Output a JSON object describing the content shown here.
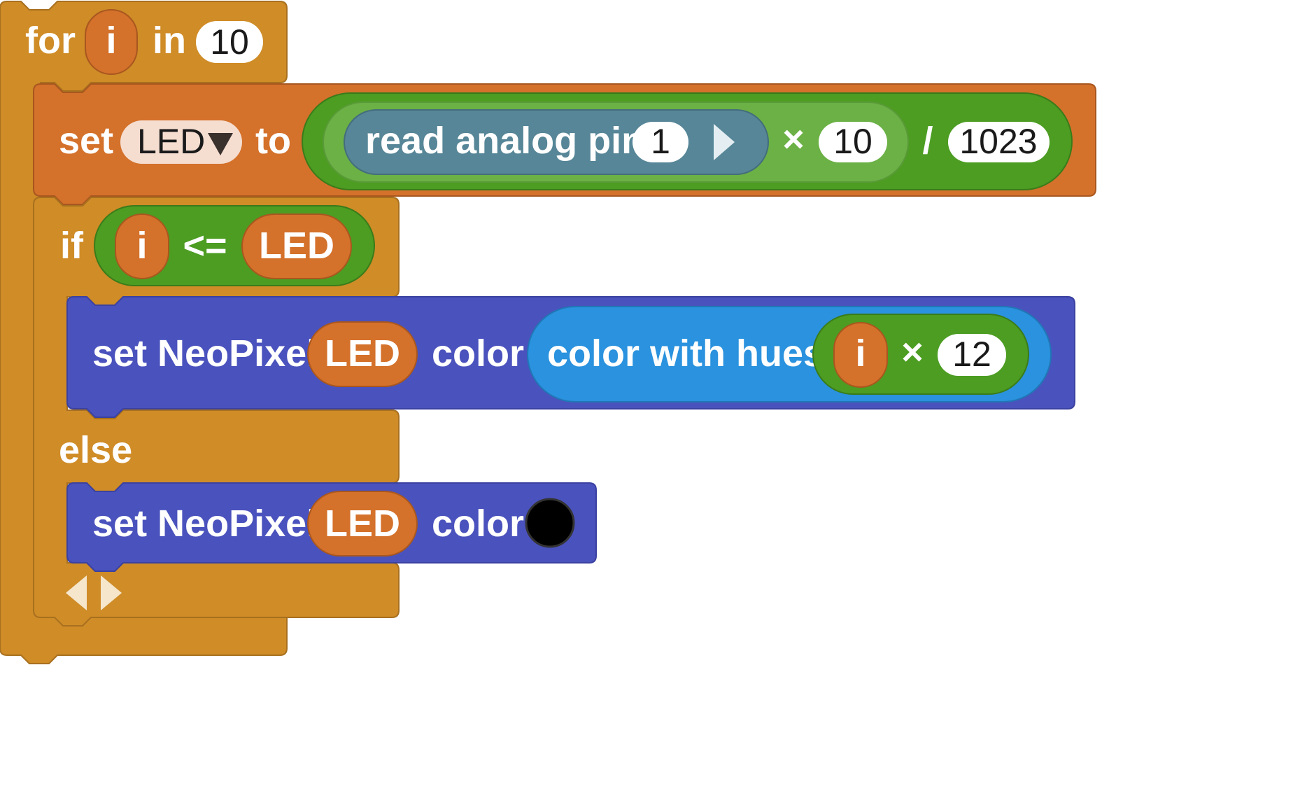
{
  "colors": {
    "loop": "#cf8c27",
    "variable": "#d4712b",
    "math": "#4c9d22",
    "math_inner": "#6bb146",
    "pins": "#568697",
    "light": "#4a52bd",
    "color": "#2a92de",
    "black_swatch": "#000000"
  },
  "for_block": {
    "label_for": "for",
    "var": "i",
    "label_in": "in",
    "count": "10"
  },
  "set_block": {
    "label_set": "set",
    "var": "LED",
    "label_to": "to",
    "read_label": "read analog pin",
    "pin": "1",
    "times": "×",
    "multiplier": "10",
    "divide": "/",
    "divisor": "1023"
  },
  "if_block": {
    "label_if": "if",
    "left": "i",
    "op": "<=",
    "right": "LED",
    "label_else": "else",
    "mutator_icons": [
      "arrow-left-icon",
      "arrow-right-icon"
    ]
  },
  "neopixel_then": {
    "label": "set NeoPixel",
    "index": "LED",
    "label_color": "color",
    "hue_label": "color with hues",
    "hue_var": "i",
    "times": "×",
    "hue_factor": "12"
  },
  "neopixel_else": {
    "label": "set NeoPixel",
    "index": "LED",
    "label_color": "color",
    "swatch": "black"
  }
}
